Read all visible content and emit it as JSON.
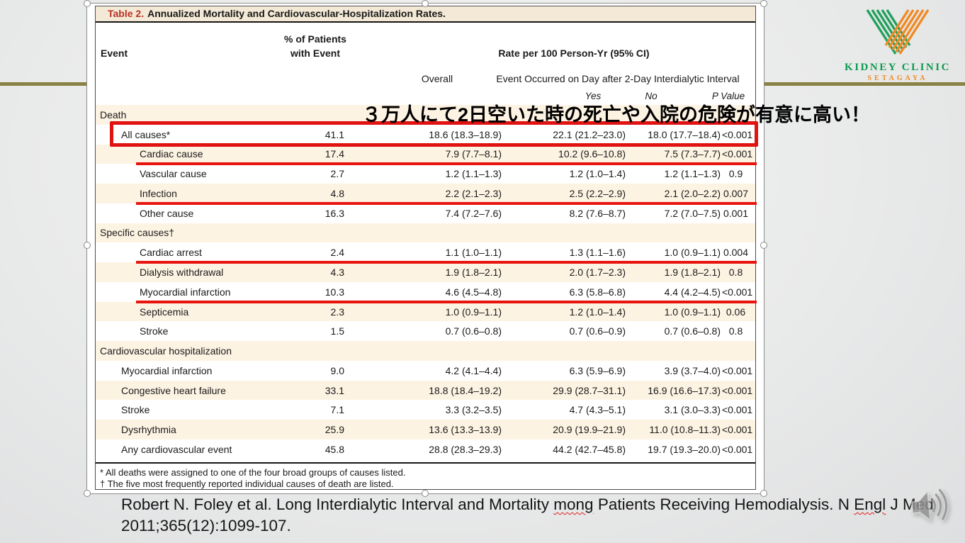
{
  "slide": {
    "annotation_jp": "３万人にて2日空いた時の死亡や入院の危険が有意に高い！",
    "citation": {
      "line1": "Robert N. Foley et al. Long Interdialytic Interval and Mortality mong Patients Receiving Hemodialysis. N Engl J Med",
      "line2": "2011;365(12):1099-107.",
      "misspelled": [
        "mong",
        "Engl"
      ]
    },
    "logo": {
      "line1": "KIDNEY CLINIC",
      "line2": "SETAGAYA"
    },
    "colors": {
      "highlight_red": "#e01212",
      "row_cream": "#fdf3e3",
      "title_band": "#f3e9d6",
      "olive_rule": "#8a8145",
      "logo_green": "#0f9b4f",
      "logo_orange": "#ef8b1f",
      "table_title_red": "#b93126"
    }
  },
  "table": {
    "title_label": "Table 2.",
    "title_text": "Annualized Mortality and Cardiovascular-Hospitalization Rates.",
    "headers": {
      "event": "Event",
      "pct_line1": "% of Patients",
      "pct_line2": "with Event",
      "rate_group": "Rate per 100 Person-Yr (95% CI)",
      "overall": "Overall",
      "interval_group": "Event Occurred on Day after 2-Day Interdialytic Interval",
      "yes": "Yes",
      "no": "No",
      "p": "P Value"
    },
    "rows": [
      {
        "label": "Death",
        "section": true,
        "indent": 0,
        "bg": "cream"
      },
      {
        "label": "All causes*",
        "indent": 1,
        "bg": "white",
        "pct": "41.1",
        "overall": "18.6 (18.3–18.9)",
        "yes": "22.1 (21.2–23.0)",
        "no": "18.0 (17.7–18.4)",
        "p": "<0.001",
        "highlight": "box"
      },
      {
        "label": "Cardiac cause",
        "indent": 2,
        "bg": "cream",
        "pct": "17.4",
        "overall": "7.9 (7.7–8.1)",
        "yes": "10.2 (9.6–10.8)",
        "no": "7.5 (7.3–7.7)",
        "p": "<0.001",
        "highlight": "underline"
      },
      {
        "label": "Vascular cause",
        "indent": 2,
        "bg": "white",
        "pct": "2.7",
        "overall": "1.2 (1.1–1.3)",
        "yes": "1.2 (1.0–1.4)",
        "no": "1.2 (1.1–1.3)",
        "p": "0.9"
      },
      {
        "label": "Infection",
        "indent": 2,
        "bg": "cream",
        "pct": "4.8",
        "overall": "2.2 (2.1–2.3)",
        "yes": "2.5 (2.2–2.9)",
        "no": "2.1 (2.0–2.2)",
        "p": "0.007",
        "highlight": "underline"
      },
      {
        "label": "Other cause",
        "indent": 2,
        "bg": "white",
        "pct": "16.3",
        "overall": "7.4 (7.2–7.6)",
        "yes": "8.2 (7.6–8.7)",
        "no": "7.2 (7.0–7.5)",
        "p": "0.001"
      },
      {
        "label": "Specific causes†",
        "section": true,
        "indent": 0,
        "bg": "cream"
      },
      {
        "label": "Cardiac arrest",
        "indent": 2,
        "bg": "white",
        "pct": "2.4",
        "overall": "1.1 (1.0–1.1)",
        "yes": "1.3 (1.1–1.6)",
        "no": "1.0 (0.9–1.1)",
        "p": "0.004",
        "highlight": "underline"
      },
      {
        "label": "Dialysis withdrawal",
        "indent": 2,
        "bg": "cream",
        "pct": "4.3",
        "overall": "1.9 (1.8–2.1)",
        "yes": "2.0 (1.7–2.3)",
        "no": "1.9 (1.8–2.1)",
        "p": "0.8"
      },
      {
        "label": "Myocardial infarction",
        "indent": 2,
        "bg": "white",
        "pct": "10.3",
        "overall": "4.6 (4.5–4.8)",
        "yes": "6.3 (5.8–6.8)",
        "no": "4.4 (4.2–4.5)",
        "p": "<0.001",
        "highlight": "underline"
      },
      {
        "label": "Septicemia",
        "indent": 2,
        "bg": "cream",
        "pct": "2.3",
        "overall": "1.0 (0.9–1.1)",
        "yes": "1.2 (1.0–1.4)",
        "no": "1.0 (0.9–1.1)",
        "p": "0.06"
      },
      {
        "label": "Stroke",
        "indent": 2,
        "bg": "white",
        "pct": "1.5",
        "overall": "0.7 (0.6–0.8)",
        "yes": "0.7 (0.6–0.9)",
        "no": "0.7 (0.6–0.8)",
        "p": "0.8"
      },
      {
        "label": "Cardiovascular hospitalization",
        "section": true,
        "indent": 0,
        "bg": "cream"
      },
      {
        "label": "Myocardial infarction",
        "indent": 1,
        "bg": "white",
        "pct": "9.0",
        "overall": "4.2 (4.1–4.4)",
        "yes": "6.3 (5.9–6.9)",
        "no": "3.9 (3.7–4.0)",
        "p": "<0.001"
      },
      {
        "label": "Congestive heart failure",
        "indent": 1,
        "bg": "cream",
        "pct": "33.1",
        "overall": "18.8 (18.4–19.2)",
        "yes": "29.9 (28.7–31.1)",
        "no": "16.9 (16.6–17.3)",
        "p": "<0.001"
      },
      {
        "label": "Stroke",
        "indent": 1,
        "bg": "white",
        "pct": "7.1",
        "overall": "3.3 (3.2–3.5)",
        "yes": "4.7 (4.3–5.1)",
        "no": "3.1 (3.0–3.3)",
        "p": "<0.001"
      },
      {
        "label": "Dysrhythmia",
        "indent": 1,
        "bg": "cream",
        "pct": "25.9",
        "overall": "13.6 (13.3–13.9)",
        "yes": "20.9 (19.9–21.9)",
        "no": "11.0 (10.8–11.3)",
        "p": "<0.001"
      },
      {
        "label": "Any cardiovascular event",
        "indent": 1,
        "bg": "white",
        "pct": "45.8",
        "overall": "28.8 (28.3–29.3)",
        "yes": "44.2 (42.7–45.8)",
        "no": "19.7 (19.3–20.0)",
        "p": "<0.001"
      }
    ],
    "footnotes": [
      "* All deaths were assigned to one of the four broad groups of causes listed.",
      "† The five most frequently reported individual causes of death are listed."
    ]
  }
}
